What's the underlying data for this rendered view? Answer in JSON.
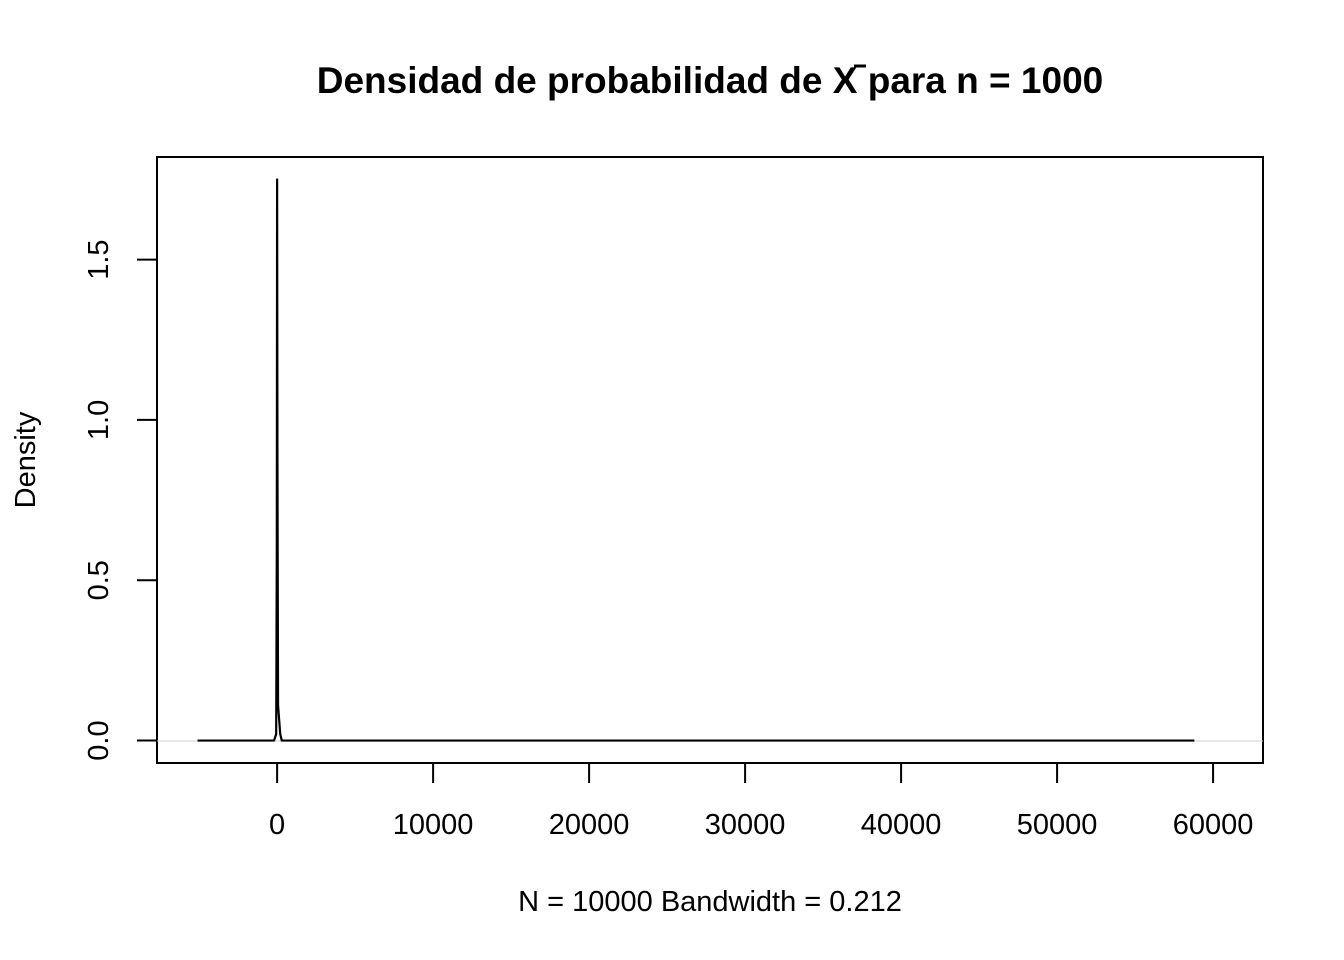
{
  "chart_data": {
    "type": "line",
    "title_prefix": "Densidad de probabilidad de ",
    "title_var": "X",
    "title_suffix": " para n = 1000",
    "xlabel": "N = 10000   Bandwidth = 0.212",
    "ylabel": "Density",
    "xlim": [
      -7700,
      63200
    ],
    "ylim": [
      -0.07,
      1.82
    ],
    "xticks": [
      0,
      10000,
      20000,
      30000,
      40000,
      50000,
      60000
    ],
    "xtick_labels": [
      "0",
      "10000",
      "20000",
      "30000",
      "40000",
      "50000",
      "60000"
    ],
    "yticks": [
      0.0,
      0.5,
      1.0,
      1.5
    ],
    "ytick_labels": [
      "0.0",
      "0.5",
      "1.0",
      "1.5"
    ],
    "grid": false,
    "legend": "none",
    "line_color": "#000000",
    "series": [
      {
        "x": [
          -5100,
          -1500,
          -200,
          -60,
          -20,
          0,
          20,
          60,
          200,
          300,
          1500,
          10000,
          30000,
          58800
        ],
        "y": [
          0,
          0,
          0,
          0.02,
          0.6,
          1.75,
          0.9,
          0.11,
          0.02,
          0,
          0,
          0,
          0,
          0
        ]
      }
    ]
  }
}
